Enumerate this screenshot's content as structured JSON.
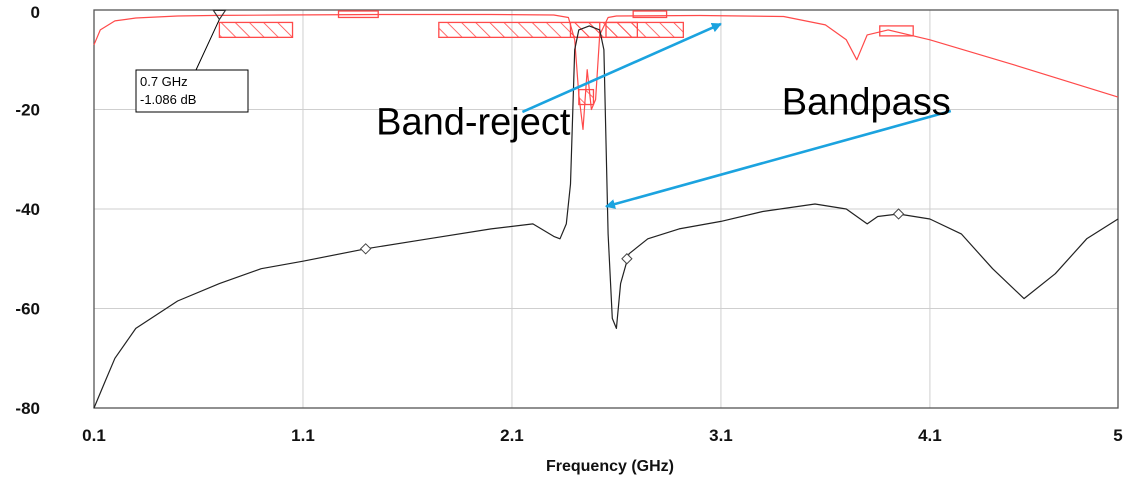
{
  "chart_data": {
    "type": "line",
    "title": "",
    "xlabel": "Frequency (GHz)",
    "ylabel": "",
    "xlim": [
      0.1,
      5
    ],
    "ylim": [
      -80,
      0
    ],
    "x_ticks": [
      0.1,
      1.1,
      2.1,
      3.1,
      4.1,
      5
    ],
    "x_tick_labels": [
      "0.1",
      "1.1",
      "2.1",
      "3.1",
      "4.1",
      "5"
    ],
    "y_ticks": [
      0,
      -20,
      -40,
      -60,
      -80
    ],
    "y_tick_labels": [
      "0",
      "-20",
      "-40",
      "-60",
      "-80"
    ],
    "grid": true,
    "series": [
      {
        "color": "#ff4a4a",
        "points": [
          [
            0.1,
            -7
          ],
          [
            0.13,
            -4
          ],
          [
            0.2,
            -2.2
          ],
          [
            0.3,
            -1.6
          ],
          [
            0.5,
            -1.2
          ],
          [
            0.7,
            -1.086
          ],
          [
            1.0,
            -1.0
          ],
          [
            1.5,
            -0.9
          ],
          [
            2.0,
            -0.9
          ],
          [
            2.3,
            -1.0
          ],
          [
            2.37,
            -1.5
          ],
          [
            2.4,
            -6
          ],
          [
            2.42,
            -17
          ],
          [
            2.44,
            -24
          ],
          [
            2.46,
            -12
          ],
          [
            2.48,
            -20
          ],
          [
            2.5,
            -18
          ],
          [
            2.52,
            -5
          ],
          [
            2.56,
            -1.5
          ],
          [
            2.6,
            -1.2
          ],
          [
            3.0,
            -1.1
          ],
          [
            3.4,
            -1.3
          ],
          [
            3.6,
            -3
          ],
          [
            3.7,
            -6
          ],
          [
            3.75,
            -10
          ],
          [
            3.8,
            -5
          ],
          [
            3.9,
            -4
          ],
          [
            4.1,
            -6
          ],
          [
            4.5,
            -11
          ],
          [
            5.0,
            -17.5
          ]
        ]
      },
      {
        "color": "#222222",
        "points": [
          [
            0.1,
            -80
          ],
          [
            0.15,
            -75
          ],
          [
            0.2,
            -70
          ],
          [
            0.3,
            -64
          ],
          [
            0.5,
            -58.5
          ],
          [
            0.7,
            -55
          ],
          [
            0.9,
            -52
          ],
          [
            1.1,
            -50.5
          ],
          [
            1.4,
            -48
          ],
          [
            1.7,
            -46
          ],
          [
            2.0,
            -44
          ],
          [
            2.2,
            -43
          ],
          [
            2.3,
            -45.5
          ],
          [
            2.33,
            -46
          ],
          [
            2.36,
            -43
          ],
          [
            2.38,
            -35
          ],
          [
            2.4,
            -8
          ],
          [
            2.42,
            -4
          ],
          [
            2.47,
            -3.2
          ],
          [
            2.52,
            -4
          ],
          [
            2.54,
            -8
          ],
          [
            2.56,
            -45
          ],
          [
            2.58,
            -62
          ],
          [
            2.6,
            -64
          ],
          [
            2.62,
            -55
          ],
          [
            2.66,
            -49
          ],
          [
            2.75,
            -46
          ],
          [
            2.9,
            -44
          ],
          [
            3.1,
            -42.5
          ],
          [
            3.3,
            -40.5
          ],
          [
            3.55,
            -39
          ],
          [
            3.7,
            -40
          ],
          [
            3.8,
            -43
          ],
          [
            3.85,
            -41.5
          ],
          [
            3.95,
            -41
          ],
          [
            4.1,
            -42
          ],
          [
            4.25,
            -45
          ],
          [
            4.4,
            -52
          ],
          [
            4.55,
            -58
          ],
          [
            4.7,
            -53
          ],
          [
            4.85,
            -46
          ],
          [
            5.0,
            -42
          ]
        ]
      }
    ],
    "point_markers": [
      {
        "x": 1.4,
        "y": -48
      },
      {
        "x": 2.65,
        "y": -50
      },
      {
        "x": 3.95,
        "y": -41
      }
    ],
    "mask_regions": [
      {
        "x1": 0.7,
        "x2": 1.05,
        "y1": -2.5,
        "y2": -5.5,
        "hatched": true
      },
      {
        "x1": 1.75,
        "x2": 2.7,
        "y1": -2.5,
        "y2": -5.5,
        "hatched": true
      },
      {
        "x1": 2.38,
        "x2": 2.52,
        "y1": -2.5,
        "y2": -5.5,
        "hatched": true
      },
      {
        "x1": 2.55,
        "x2": 2.92,
        "y1": -2.5,
        "y2": -5.5,
        "hatched": true
      },
      {
        "x1": 2.42,
        "x2": 2.49,
        "y1": -16,
        "y2": -19,
        "hatched": true
      },
      {
        "x1": 1.27,
        "x2": 1.46,
        "y1": -0.2,
        "y2": -1.5,
        "hatched": false
      },
      {
        "x1": 2.68,
        "x2": 2.84,
        "y1": -0.2,
        "y2": -1.5,
        "hatched": false
      },
      {
        "x1": 3.86,
        "x2": 4.02,
        "y1": -3.2,
        "y2": -5.2,
        "hatched": false
      }
    ],
    "marker": {
      "x": 0.7,
      "y": -1.086,
      "label_lines": [
        "0.7 GHz",
        "-1.086 dB"
      ]
    },
    "annotations": [
      {
        "text": "Band-reject",
        "text_x": 1.45,
        "text_y": -25,
        "arrow_from": [
          2.15,
          -20.5
        ],
        "arrow_to": [
          3.1,
          -2.8
        ]
      },
      {
        "text": "Bandpass",
        "text_x": 4.2,
        "text_y": -21,
        "arrow_from": [
          4.2,
          -20.3
        ],
        "arrow_to": [
          2.55,
          -39.5
        ]
      }
    ]
  }
}
